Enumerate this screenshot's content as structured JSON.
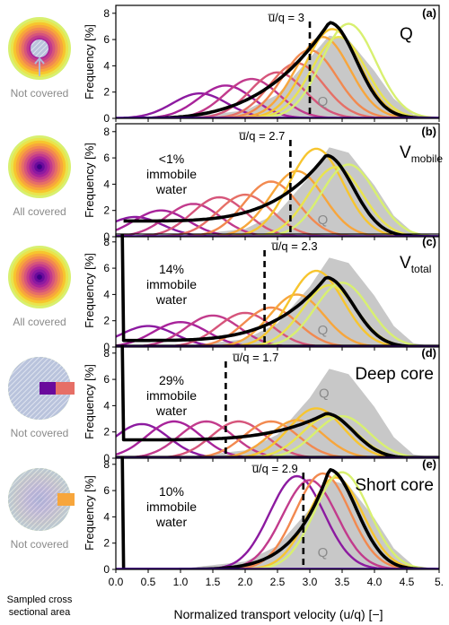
{
  "figure": {
    "x_axis_label": "Normalized transport velocity (u/q) [−]",
    "y_axis_label": "Frequency [%]",
    "x_ticks": [
      "0.0",
      "0.5",
      "1.0",
      "1.5",
      "2.0",
      "2.5",
      "3.0",
      "3.5",
      "4.0",
      "4.5",
      "5."
    ],
    "y_ticks": [
      "0",
      "2",
      "4",
      "6",
      "8"
    ],
    "left_column_caption": [
      "Sampled cross",
      "sectional area"
    ],
    "q_marker": "Q",
    "ubar_prefix": "u̅/q = "
  },
  "colors": {
    "ring_palette": [
      "#3b0285",
      "#6a0a9c",
      "#8c1aa0",
      "#a8239a",
      "#c23b8c",
      "#d6557b",
      "#e66f66",
      "#f2894f",
      "#f7a63c",
      "#f7c52e",
      "#e9e44c",
      "#d8f070"
    ],
    "reference_area": "#c8c8c8",
    "overall_curve": "#000000",
    "hatch": "#9aa8c8"
  },
  "chart_data": [
    {
      "type": "line",
      "panel": "(a)",
      "title": "Q",
      "title_sub": "",
      "ubar_value": 3,
      "ubar_label": "u̅/q = 3",
      "immobile_text": [],
      "disk_caption": "Not covered",
      "xlim": [
        0,
        5
      ],
      "ylim": [
        0,
        8.6
      ],
      "reference_area": {
        "x": [
          0,
          1,
          2,
          2.5,
          3,
          3.3,
          3.6,
          4,
          4.3,
          4.6,
          5
        ],
        "y": [
          0,
          0.05,
          0.6,
          1.8,
          4.6,
          6.3,
          6.0,
          3.6,
          1.5,
          0.3,
          0
        ]
      },
      "overall_peak": {
        "x": 3.3,
        "y": 7.3
      },
      "components": [
        {
          "mu": 1.3,
          "peak": 1.9
        },
        {
          "mu": 1.7,
          "peak": 2.5
        },
        {
          "mu": 2.1,
          "peak": 3.0
        },
        {
          "mu": 2.5,
          "peak": 3.5
        },
        {
          "mu": 2.8,
          "peak": 4.2
        },
        {
          "mu": 3.0,
          "peak": 5.2
        },
        {
          "mu": 3.2,
          "peak": 6.2
        },
        {
          "mu": 3.35,
          "peak": 6.8
        },
        {
          "mu": 3.45,
          "peak": 6.2
        },
        {
          "mu": 3.6,
          "peak": 7.2
        }
      ]
    },
    {
      "type": "line",
      "panel": "(b)",
      "title": "V",
      "title_sub": "mobile",
      "ubar_value": 2.7,
      "ubar_label": "u̅/q = 2.7",
      "immobile_text": [
        "<1%",
        "immobile",
        "water"
      ],
      "disk_caption": "All covered",
      "xlim": [
        0,
        5
      ],
      "ylim": [
        0,
        8.6
      ],
      "reference_area": {
        "x": [
          0,
          1,
          2,
          2.5,
          3,
          3.3,
          3.6,
          4,
          4.3,
          4.6,
          5
        ],
        "y": [
          0,
          0.05,
          0.6,
          1.8,
          4.6,
          6.8,
          6.4,
          3.9,
          1.6,
          0.3,
          0
        ]
      },
      "overall_peak": {
        "x": 3.25,
        "y": 6.2
      },
      "components": [
        {
          "mu": 0.3,
          "peak": 1.5
        },
        {
          "mu": 0.7,
          "peak": 2.0
        },
        {
          "mu": 1.2,
          "peak": 2.5
        },
        {
          "mu": 1.6,
          "peak": 3.0
        },
        {
          "mu": 2.0,
          "peak": 3.2
        },
        {
          "mu": 2.4,
          "peak": 4.2
        },
        {
          "mu": 2.8,
          "peak": 5.0
        },
        {
          "mu": 3.1,
          "peak": 6.7
        },
        {
          "mu": 3.4,
          "peak": 5.3
        },
        {
          "mu": 3.6,
          "peak": 5.5
        }
      ]
    },
    {
      "type": "line",
      "panel": "(c)",
      "title": "V",
      "title_sub": "total",
      "ubar_value": 2.3,
      "ubar_label": "u̅/q = 2.3",
      "immobile_text": [
        "14%",
        "immobile",
        "water"
      ],
      "disk_caption": "All covered",
      "xlim": [
        0,
        5
      ],
      "ylim": [
        0,
        8.6
      ],
      "reference_area": {
        "x": [
          0,
          1,
          2,
          2.5,
          3,
          3.3,
          3.6,
          4,
          4.3,
          4.6,
          5
        ],
        "y": [
          0,
          0.05,
          0.6,
          1.8,
          4.6,
          6.8,
          6.4,
          3.9,
          1.6,
          0.3,
          0
        ]
      },
      "overall_peak": {
        "x": 3.25,
        "y": 5.3
      },
      "components": [
        {
          "mu": 0.5,
          "peak": 1.6
        },
        {
          "mu": 1.0,
          "peak": 1.9
        },
        {
          "mu": 1.5,
          "peak": 2.4
        },
        {
          "mu": 2.0,
          "peak": 2.6
        },
        {
          "mu": 2.4,
          "peak": 3.0
        },
        {
          "mu": 2.8,
          "peak": 4.0
        },
        {
          "mu": 3.1,
          "peak": 5.8
        },
        {
          "mu": 3.3,
          "peak": 4.7
        },
        {
          "mu": 3.5,
          "peak": 4.9
        }
      ]
    },
    {
      "type": "line",
      "panel": "(d)",
      "title": "Deep core",
      "title_sub": "",
      "ubar_value": 1.7,
      "ubar_label": "u̅/q = 1.7",
      "immobile_text": [
        "29%",
        "immobile",
        "water"
      ],
      "disk_caption": "Not covered",
      "xlim": [
        0,
        5
      ],
      "ylim": [
        0,
        8.6
      ],
      "reference_area": {
        "x": [
          0,
          1,
          2,
          2.5,
          3,
          3.3,
          3.6,
          4,
          4.3,
          4.6,
          5
        ],
        "y": [
          0,
          0.05,
          0.6,
          1.8,
          4.6,
          6.8,
          6.4,
          3.9,
          1.6,
          0.3,
          0
        ]
      },
      "overall_peak": {
        "x": 3.25,
        "y": 3.4
      },
      "components": [
        {
          "mu": 0.4,
          "peak": 2.6
        },
        {
          "mu": 0.9,
          "peak": 2.8
        },
        {
          "mu": 1.4,
          "peak": 2.8
        },
        {
          "mu": 1.9,
          "peak": 2.8
        },
        {
          "mu": 2.4,
          "peak": 2.8
        },
        {
          "mu": 2.8,
          "peak": 2.9
        },
        {
          "mu": 3.1,
          "peak": 3.8
        },
        {
          "mu": 3.3,
          "peak": 3.2
        },
        {
          "mu": 3.5,
          "peak": 3.2
        }
      ]
    },
    {
      "type": "line",
      "panel": "(e)",
      "title": "Short core",
      "title_sub": "",
      "ubar_value": 2.9,
      "ubar_label": "u̅/q = 2.9",
      "immobile_text": [
        "10%",
        "immobile",
        "water"
      ],
      "disk_caption": "Not covered",
      "xlim": [
        0,
        5
      ],
      "ylim": [
        0,
        8.6
      ],
      "reference_area": {
        "x": [
          0,
          1,
          2,
          2.5,
          3,
          3.3,
          3.6,
          4,
          4.3,
          4.6,
          5
        ],
        "y": [
          0,
          0.05,
          0.6,
          1.8,
          4.6,
          6.8,
          6.4,
          3.9,
          1.6,
          0.3,
          0
        ]
      },
      "overall_peak": {
        "x": 3.3,
        "y": 7.6
      },
      "components": [
        {
          "mu": 2.8,
          "peak": 7.1
        },
        {
          "mu": 3.0,
          "peak": 6.8
        },
        {
          "mu": 3.2,
          "peak": 7.3
        },
        {
          "mu": 3.4,
          "peak": 7.0
        },
        {
          "mu": 3.5,
          "peak": 7.4
        }
      ]
    }
  ]
}
